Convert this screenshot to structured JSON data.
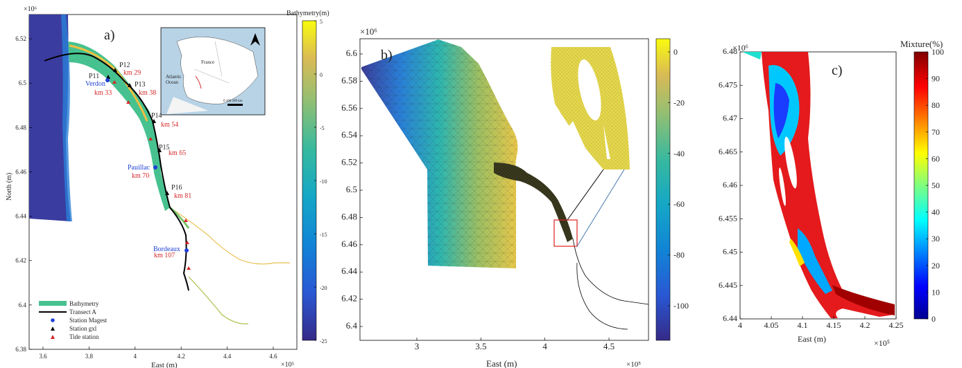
{
  "panels": {
    "a": {
      "label": "a)",
      "exponent_y": "×10⁶",
      "exponent_x": "×10⁵",
      "colorbar_title": "Bathymetry(m)",
      "xlabel": "East (m)",
      "ylabel": "North (m)",
      "xticks": [
        "3.6",
        "3.8",
        "4",
        "4.2",
        "4.4",
        "4.6"
      ],
      "yticks": [
        "6.38",
        "6.4",
        "6.42",
        "6.44",
        "6.46",
        "6.48",
        "6.5",
        "6.52"
      ],
      "cbar_ticks": [
        "5",
        "0",
        "-5",
        "-10",
        "-15",
        "-20",
        "-25"
      ],
      "stations": [
        {
          "name": "P11",
          "km": "km 33",
          "km_color": "#d62728"
        },
        {
          "name": "P12",
          "km": "km 29",
          "km_color": "#d62728"
        },
        {
          "name": "P13",
          "km": "km 38",
          "km_color": "#d62728"
        },
        {
          "name": "P14",
          "km": "km 54",
          "km_color": "#d62728"
        },
        {
          "name": "P15",
          "km": "km 65",
          "km_color": "#d62728"
        },
        {
          "name": "P16",
          "km": "km 81",
          "km_color": "#d62728"
        }
      ],
      "places": [
        {
          "name": "Verdon",
          "km": "km 33"
        },
        {
          "name": "Pauillac",
          "km": "km 70"
        },
        {
          "name": "Bordeaux",
          "km": "km 107"
        }
      ],
      "legend": [
        "Bathymetry",
        "Transect A",
        "Station Magest",
        "Station gxl",
        "Tide station"
      ],
      "inset": {
        "country": "France",
        "ocean_line1": "Atlantic",
        "ocean_line2": "Ocean",
        "scale": "0 100 200 km"
      }
    },
    "b": {
      "label": "b)",
      "exponent_y": "×10⁶",
      "exponent_x": "×10⁵",
      "xlabel": "East (m)",
      "xticks": [
        "3",
        "3.5",
        "4",
        "4.5"
      ],
      "yticks": [
        "6.4",
        "6.42",
        "6.44",
        "6.46",
        "6.48",
        "6.5",
        "6.52",
        "6.54",
        "6.56",
        "6.58",
        "6.6"
      ],
      "cbar_ticks": [
        "0",
        "-20",
        "-40",
        "-60",
        "-80",
        "-100"
      ]
    },
    "c": {
      "label": "c)",
      "exponent_y": "×10⁶",
      "exponent_x": "×10⁵",
      "colorbar_title": "Mixture(%)",
      "xlabel": "East (m)",
      "xticks": [
        "4",
        "4.05",
        "4.1",
        "4.15",
        "4.2",
        "4.25"
      ],
      "yticks": [
        "6.48",
        "6.475",
        "6.47",
        "6.465",
        "6.46",
        "6.455",
        "6.45",
        "6.445",
        "6.44"
      ],
      "cbar_ticks": [
        "100",
        "90",
        "80",
        "70",
        "60",
        "50",
        "40",
        "30",
        "20",
        "10",
        "0"
      ]
    }
  },
  "chart_data": [
    {
      "type": "heatmap",
      "title": "a)",
      "xlabel": "East (m)",
      "ylabel": "North (m)",
      "xlim": [
        350000,
        470000
      ],
      "ylim": [
        6380000,
        6530000
      ],
      "colorbar": {
        "label": "Bathymetry(m)",
        "range": [
          -25,
          5
        ]
      },
      "stations": [
        {
          "name": "P11",
          "x": 385000,
          "y": 6503000,
          "km": 33
        },
        {
          "name": "P12",
          "x": 387000,
          "y": 6507000,
          "km": 29
        },
        {
          "name": "P13",
          "x": 395000,
          "y": 6500000,
          "km": 38
        },
        {
          "name": "P14",
          "x": 404000,
          "y": 6483000,
          "km": 54
        },
        {
          "name": "P15",
          "x": 407000,
          "y": 6470000,
          "km": 65
        },
        {
          "name": "P16",
          "x": 412000,
          "y": 6452000,
          "km": 81
        }
      ]
    },
    {
      "type": "heatmap",
      "title": "b)",
      "xlabel": "East (m)",
      "xlim": [
        260000,
        470000
      ],
      "ylim": [
        6390000,
        6610000
      ],
      "colorbar": {
        "range": [
          -110,
          5
        ]
      }
    },
    {
      "type": "heatmap",
      "title": "c)",
      "xlabel": "East (m)",
      "xlim": [
        400000,
        425000
      ],
      "ylim": [
        6440000,
        6480000
      ],
      "colorbar": {
        "label": "Mixture(%)",
        "range": [
          0,
          100
        ]
      }
    }
  ]
}
